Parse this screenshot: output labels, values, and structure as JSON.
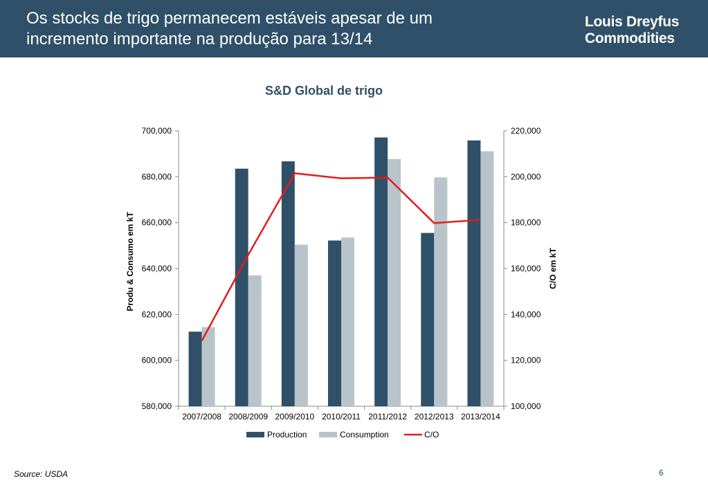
{
  "slide": {
    "title_line1": "Os stocks de trigo permanecem estáveis apesar de um",
    "title_line2": "incremento importante na produção para 13/14",
    "logo_line1": "Louis Dreyfus",
    "logo_line2": "Commodities",
    "source": "Source: USDA",
    "page_number": "6"
  },
  "colors": {
    "header": "#2f5068",
    "production": "#2f5068",
    "consumption": "#b8c4c9",
    "co": "#e31b1b",
    "chart_title": "#2f5068"
  },
  "chart_data": {
    "type": "bar",
    "title": "S&D Global de trigo",
    "categories": [
      "2007/2008",
      "2008/2009",
      "2009/2010",
      "2010/2011",
      "2011/2012",
      "2012/2013",
      "2013/2014"
    ],
    "series": [
      {
        "name": "Production",
        "type": "bar",
        "axis": "left",
        "values": [
          612500,
          683500,
          686700,
          652200,
          697100,
          655500,
          695800
        ]
      },
      {
        "name": "Consumption",
        "type": "bar",
        "axis": "left",
        "values": [
          614500,
          637000,
          650400,
          653500,
          687700,
          679700,
          691100
        ]
      },
      {
        "name": "C/O",
        "type": "line",
        "axis": "right",
        "values": [
          128500,
          166000,
          201500,
          199300,
          199600,
          179800,
          181200
        ]
      }
    ],
    "ylabel": "Produ & Consumo em kT",
    "y2label": "C/O em kT",
    "ylim": [
      580000,
      700000
    ],
    "y2lim": [
      100000,
      220000
    ],
    "yticks": [
      "580,000",
      "600,000",
      "620,000",
      "640,000",
      "660,000",
      "680,000",
      "700,000"
    ],
    "y2ticks": [
      "100,000",
      "120,000",
      "140,000",
      "160,000",
      "180,000",
      "200,000",
      "220,000"
    ],
    "legend": "bottom",
    "grid": false
  }
}
